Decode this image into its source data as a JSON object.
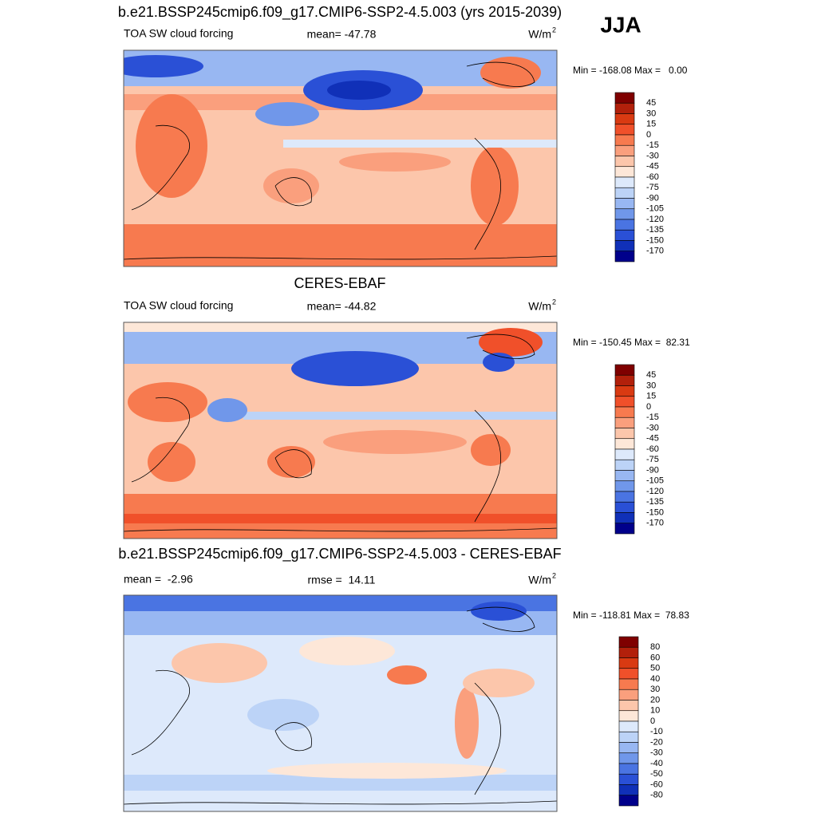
{
  "figure_title": "JJA",
  "panels": [
    {
      "title": "b.e21.BSSP245cmip6.f09_g17.CMIP6-SSP2-4.5.003 (yrs 2015-2039)",
      "left_label": "TOA SW cloud forcing",
      "center_label": "mean= -47.78",
      "units": {
        "base": "W/m",
        "sup": "2"
      },
      "range_text": "Min = -168.08 Max =   0.00",
      "colorbar": {
        "labels": [
          45,
          30,
          15,
          0,
          -15,
          -30,
          -45,
          -60,
          -75,
          -90,
          -105,
          -120,
          -135,
          -150,
          -170
        ],
        "colors": [
          "#7f0000",
          "#b2200b",
          "#d93a12",
          "#f0502a",
          "#f77a4f",
          "#fa9f7d",
          "#fcc6ab",
          "#fde7d8",
          "#dde9fb",
          "#bcd3f7",
          "#98b7f2",
          "#7097ea",
          "#4a74e2",
          "#2a50d6",
          "#1030b8",
          "#00008b"
        ]
      }
    },
    {
      "title": "CERES-EBAF",
      "left_label": "TOA SW cloud forcing",
      "center_label": "mean= -44.82",
      "units": {
        "base": "W/m",
        "sup": "2"
      },
      "range_text": "Min = -150.45 Max =  82.31",
      "colorbar": {
        "labels": [
          45,
          30,
          15,
          0,
          -15,
          -30,
          -45,
          -60,
          -75,
          -90,
          -105,
          -120,
          -135,
          -150,
          -170
        ],
        "colors": [
          "#7f0000",
          "#b2200b",
          "#d93a12",
          "#f0502a",
          "#f77a4f",
          "#fa9f7d",
          "#fcc6ab",
          "#fde7d8",
          "#dde9fb",
          "#bcd3f7",
          "#98b7f2",
          "#7097ea",
          "#4a74e2",
          "#2a50d6",
          "#1030b8",
          "#00008b"
        ]
      }
    },
    {
      "title": "b.e21.BSSP245cmip6.f09_g17.CMIP6-SSP2-4.5.003 - CERES-EBAF",
      "left_label": "mean =  -2.96",
      "center_label": "rmse =  14.11",
      "units": {
        "base": "W/m",
        "sup": "2"
      },
      "range_text": "Min = -118.81 Max =  78.83",
      "colorbar": {
        "labels": [
          80,
          60,
          50,
          40,
          30,
          20,
          10,
          0,
          -10,
          -20,
          -30,
          -40,
          -50,
          -60,
          -80
        ],
        "colors": [
          "#7f0000",
          "#b2200b",
          "#d93a12",
          "#f0502a",
          "#f77a4f",
          "#fa9f7d",
          "#fcc6ab",
          "#fde7d8",
          "#dde9fb",
          "#bcd3f7",
          "#98b7f2",
          "#7097ea",
          "#4a74e2",
          "#2a50d6",
          "#1030b8",
          "#00008b"
        ]
      }
    }
  ]
}
